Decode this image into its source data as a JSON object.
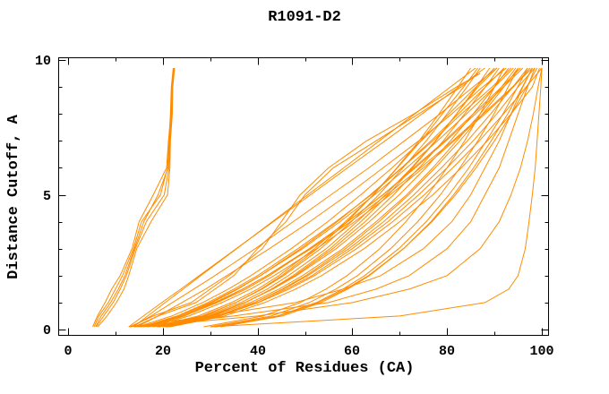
{
  "page": {
    "background": "#ffffff"
  },
  "chart_data": {
    "type": "line",
    "title": "R1091-D2",
    "xlabel": "Percent of Residues (CA)",
    "ylabel": "Distance Cutoff, A",
    "xlim": [
      0,
      100
    ],
    "ylim": [
      0,
      10
    ],
    "grid": false,
    "legend": false,
    "curve_color": "#ff8c00",
    "axis_color": "#000000",
    "x_ticks_major": [
      0,
      20,
      40,
      60,
      80,
      100
    ],
    "x_ticks_minor": [
      10,
      30,
      50,
      70,
      90
    ],
    "x_tick_labels": [
      "0",
      "20",
      "40",
      "60",
      "80",
      "100"
    ],
    "y_ticks_major": [
      0,
      5,
      10
    ],
    "y_ticks_minor": [
      1,
      2,
      3,
      4,
      6,
      7,
      8,
      9
    ],
    "y_tick_labels": [
      "0",
      "5",
      "10"
    ],
    "cutoffs": [
      0.1,
      0.5,
      1,
      1.5,
      2,
      3,
      4,
      5,
      6,
      7,
      8,
      9,
      9.7
    ],
    "series": [
      {
        "x": [
          5.5,
          6.5,
          8.5,
          10,
          11.5,
          13.8,
          15.5,
          19.5,
          21,
          21.3,
          21.6,
          21.8,
          22.2
        ]
      },
      {
        "x": [
          6,
          7.5,
          9.5,
          11,
          12.3,
          14.2,
          16.5,
          20.3,
          21.3,
          21.5,
          21.9,
          22,
          22.4
        ]
      },
      {
        "x": [
          5.2,
          6.2,
          7.8,
          9.2,
          11,
          13.5,
          15,
          18,
          20.8,
          21.2,
          21.7,
          21.9,
          22.3
        ]
      },
      {
        "x": [
          6.3,
          8.2,
          10.2,
          11.8,
          12.8,
          14.5,
          17.5,
          21,
          21.5,
          21.6,
          22,
          22.1,
          22.5
        ]
      },
      {
        "x": [
          5.8,
          7,
          9,
          10.6,
          12,
          14,
          16,
          19,
          21.1,
          21.4,
          21.8,
          22,
          22.3
        ]
      },
      {
        "x": [
          13,
          18,
          26,
          30,
          34,
          41,
          45,
          49,
          55,
          63,
          73,
          82,
          87
        ],
        "end_cutoff": 9.5
      },
      {
        "x": [
          14,
          19,
          27,
          31,
          35,
          40,
          46,
          50,
          56,
          65,
          74,
          83,
          86.5
        ],
        "end_cutoff": 9.5
      },
      {
        "x": [
          30,
          70,
          88,
          93,
          95,
          96.5,
          97.3,
          98,
          98.6,
          99,
          99.4,
          99.8,
          100
        ]
      },
      {
        "x": [
          15,
          40,
          60,
          72,
          80,
          87,
          91,
          93.5,
          95.5,
          97,
          98.2,
          99.2,
          100
        ]
      },
      {
        "x": [
          14,
          35,
          55,
          65,
          72,
          80,
          85,
          88,
          91,
          93,
          95,
          97,
          98.5
        ]
      },
      {
        "x": [
          13,
          30,
          48,
          58,
          66,
          75,
          81,
          85,
          88,
          91,
          93.5,
          96,
          98
        ]
      },
      {
        "x": [
          20.8,
          32,
          40.2,
          46.6,
          52,
          60.9,
          68.5,
          75.2,
          81.2,
          86.8,
          91.9,
          96.7,
          100
        ]
      },
      {
        "x": [
          20.5,
          31.3,
          39.3,
          45.4,
          50.6,
          59.3,
          66.6,
          73,
          78.8,
          84.3,
          89.2,
          93.9,
          97
        ]
      },
      {
        "x": [
          21.2,
          31.6,
          39.3,
          45.2,
          50.2,
          58.6,
          65.6,
          71.9,
          77.5,
          82.7,
          87.5,
          92,
          95
        ]
      },
      {
        "x": [
          19.2,
          29.6,
          37.3,
          43.2,
          48.2,
          56.6,
          63.6,
          69.9,
          75.5,
          80.7,
          85.5,
          90,
          93
        ]
      },
      {
        "x": [
          19.9,
          29.9,
          37.4,
          43,
          47.9,
          55.9,
          62.7,
          68.7,
          74.1,
          79.2,
          83.7,
          88.1,
          91
        ]
      },
      {
        "x": [
          20.6,
          30.3,
          37.4,
          42.9,
          47.5,
          55.3,
          61.8,
          67.6,
          72.7,
          77.6,
          82,
          86.2,
          89
        ]
      },
      {
        "x": [
          18.6,
          28.3,
          35.4,
          40.9,
          45.5,
          53.3,
          59.8,
          65.6,
          70.7,
          75.6,
          80,
          84.2,
          87
        ]
      },
      {
        "x": [
          19.3,
          28.6,
          35.4,
          40.7,
          45.1,
          52.6,
          58.9,
          64.4,
          69.4,
          74.1,
          78.3,
          82.3,
          85
        ]
      },
      {
        "x": [
          30.9,
          44.4,
          52.8,
          58.6,
          63.4,
          70.8,
          76.8,
          81.8,
          86.1,
          90,
          93.6,
          96.8,
          99
        ]
      },
      {
        "x": [
          31.2,
          44.2,
          52.4,
          58,
          62.6,
          69.8,
          75.6,
          80.4,
          84.6,
          88.3,
          91.8,
          94.9,
          97
        ]
      },
      {
        "x": [
          30,
          42.9,
          50.9,
          56.5,
          61.1,
          68.1,
          73.8,
          78.6,
          82.7,
          86.5,
          89.9,
          92.9,
          95
        ]
      },
      {
        "x": [
          32.2,
          45.2,
          53.4,
          59,
          63.6,
          70.8,
          76.6,
          81.4,
          85.6,
          89.3,
          92.8,
          95.9,
          98
        ]
      },
      {
        "x": [
          28.6,
          41.1,
          49,
          54.4,
          58.9,
          65.8,
          71.3,
          76,
          80,
          83.7,
          87,
          90,
          92
        ]
      },
      {
        "x": [
          16,
          23.9,
          30.9,
          36.8,
          42,
          51.3,
          59.6,
          67.3,
          74.4,
          81.2,
          87.6,
          93.8,
          98
        ]
      },
      {
        "x": [
          16.9,
          24.5,
          31.3,
          36.9,
          42,
          50.9,
          59,
          66.4,
          73.3,
          79.8,
          86,
          91.9,
          96
        ]
      },
      {
        "x": [
          15.9,
          23.3,
          30,
          35.6,
          40.6,
          49.5,
          57.4,
          64.7,
          71.5,
          78,
          84.1,
          90,
          94
        ]
      },
      {
        "x": [
          14.7,
          21.9,
          28.4,
          33.8,
          38.6,
          47.1,
          54.8,
          61.8,
          68.4,
          74.6,
          80.4,
          86.1,
          90
        ]
      },
      {
        "x": [
          16.7,
          23.9,
          30.4,
          35.8,
          40.6,
          49.1,
          56.8,
          63.8,
          70.4,
          76.6,
          82.4,
          88.1,
          92
        ]
      },
      {
        "x": [
          12.8,
          15.9,
          19.8,
          23.8,
          27.7,
          35.5,
          43.3,
          51.2,
          59,
          66.9,
          74.7,
          82.5,
          88
        ]
      },
      {
        "x": [
          13.8,
          16.8,
          20.5,
          24.3,
          28,
          35.6,
          43.1,
          50.6,
          58.2,
          65.7,
          73.2,
          80.7,
          86
        ]
      },
      {
        "x": [
          21,
          32,
          40,
          46,
          51.5,
          60,
          67.5,
          74,
          80,
          85.5,
          90.5,
          95,
          98.5
        ]
      },
      {
        "x": [
          19,
          29,
          36.5,
          42,
          46.5,
          54.5,
          61,
          67,
          72.5,
          77.5,
          82,
          86.5,
          90.5
        ]
      },
      {
        "x": [
          20,
          30.5,
          38.5,
          44.5,
          49.5,
          58,
          65,
          71.5,
          77,
          82,
          87,
          91.5,
          94.5
        ]
      },
      {
        "x": [
          18,
          27.5,
          34.5,
          40,
          44.5,
          52,
          58.5,
          64.5,
          69.5,
          74.5,
          79,
          83.5,
          86.5
        ]
      },
      {
        "x": [
          21.5,
          33,
          41.5,
          48,
          53.5,
          62.5,
          70,
          77,
          83,
          88.5,
          93.5,
          98,
          99.5
        ]
      },
      {
        "x": [
          15.5,
          23,
          29.5,
          35,
          40,
          48.5,
          56.5,
          64,
          70.5,
          77,
          83,
          89.5,
          93.5
        ]
      },
      {
        "x": [
          17.5,
          25.5,
          32.5,
          38.5,
          43.5,
          52.5,
          60.5,
          68,
          75,
          81.5,
          88,
          94,
          97.5
        ]
      },
      {
        "x": [
          16.5,
          24.5,
          31.5,
          37.5,
          42.5,
          51,
          59,
          66.5,
          73,
          79.5,
          85.5,
          91.5,
          95.5
        ]
      },
      {
        "x": [
          13.5,
          17.5,
          22,
          26.5,
          31,
          39.5,
          47.5,
          55.5,
          63.5,
          71,
          78.5,
          85.5,
          90.5
        ]
      },
      {
        "x": [
          14.5,
          19,
          24,
          29,
          33.5,
          42.5,
          51,
          59,
          66.5,
          74,
          81,
          87.5,
          92.5
        ]
      }
    ]
  }
}
